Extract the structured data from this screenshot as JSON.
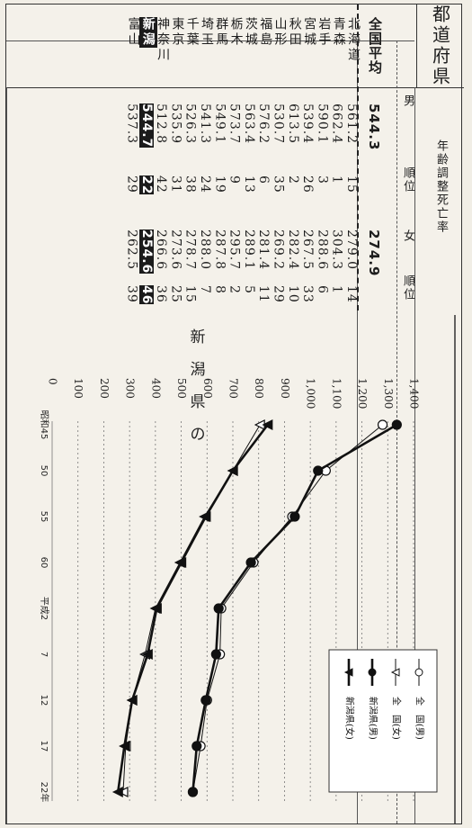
{
  "table": {
    "header_pref": "都道府県",
    "header_rate": "年齢調整死亡率",
    "header_male": "男",
    "header_female": "女",
    "header_rank": "順位",
    "national": {
      "name": "全国平均",
      "male": "544.3",
      "female": "274.9"
    },
    "rows": [
      {
        "name": "北海道",
        "male": "561.2",
        "mrank": "15",
        "female": "279.0",
        "frank": "14"
      },
      {
        "name": "青森",
        "male": "662.4",
        "mrank": "1",
        "female": "304.3",
        "frank": "1"
      },
      {
        "name": "岩手",
        "male": "590.1",
        "mrank": "3",
        "female": "288.6",
        "frank": "6"
      },
      {
        "name": "宮城",
        "male": "539.4",
        "mrank": "26",
        "female": "267.5",
        "frank": "33"
      },
      {
        "name": "秋田",
        "male": "613.5",
        "mrank": "2",
        "female": "282.4",
        "frank": "10"
      },
      {
        "name": "山形",
        "male": "530.7",
        "mrank": "35",
        "female": "269.2",
        "frank": "29"
      },
      {
        "name": "福島",
        "male": "576.2",
        "mrank": "6",
        "female": "281.4",
        "frank": "11"
      },
      {
        "name": "茨城",
        "male": "563.4",
        "mrank": "13",
        "female": "289.1",
        "frank": "5"
      },
      {
        "name": "栃木",
        "male": "573.7",
        "mrank": "9",
        "female": "295.7",
        "frank": "2"
      },
      {
        "name": "群馬",
        "male": "549.1",
        "mrank": "19",
        "female": "287.8",
        "frank": "8"
      },
      {
        "name": "埼玉",
        "male": "541.3",
        "mrank": "24",
        "female": "288.0",
        "frank": "7"
      },
      {
        "name": "千葉",
        "male": "526.3",
        "mrank": "38",
        "female": "278.7",
        "frank": "15"
      },
      {
        "name": "東京",
        "male": "535.9",
        "mrank": "31",
        "female": "273.6",
        "frank": "25"
      },
      {
        "name": "神奈川",
        "male": "512.8",
        "mrank": "42",
        "female": "266.6",
        "frank": "36"
      }
    ],
    "niigata": {
      "name": "新潟",
      "male": "544.7",
      "mrank": "22",
      "female": "254.6",
      "frank": "46"
    },
    "toyama": {
      "name": "富山",
      "male": "537.3",
      "mrank": "29",
      "female": "262.5",
      "frank": "39"
    }
  },
  "side_text": "新潟県の",
  "chart_data": {
    "type": "line",
    "x": [
      "昭和45",
      "50",
      "55",
      "60",
      "平成2",
      "7",
      "12",
      "17",
      "22年"
    ],
    "ylim": [
      0,
      1400
    ],
    "yticks": [
      "0",
      "100",
      "200",
      "300",
      "400",
      "500",
      "600",
      "700",
      "800",
      "900",
      "1,000",
      "1,100",
      "1,200",
      "1,300",
      "1,400"
    ],
    "series": [
      {
        "name": "全　国(男)",
        "marker": "open-circle",
        "values": [
          1280,
          1060,
          930,
          780,
          655,
          650,
          600,
          575,
          545
        ]
      },
      {
        "name": "全　国(女)",
        "marker": "open-triangle",
        "values": [
          805,
          700,
          590,
          495,
          400,
          360,
          310,
          285,
          275
        ]
      },
      {
        "name": "新潟県(男)",
        "marker": "filled-circle",
        "values": [
          1335,
          1030,
          940,
          770,
          645,
          635,
          595,
          560,
          545
        ]
      },
      {
        "name": "新潟県(女)",
        "marker": "filled-triangle",
        "values": [
          835,
          700,
          595,
          500,
          405,
          370,
          310,
          280,
          255
        ]
      }
    ]
  }
}
